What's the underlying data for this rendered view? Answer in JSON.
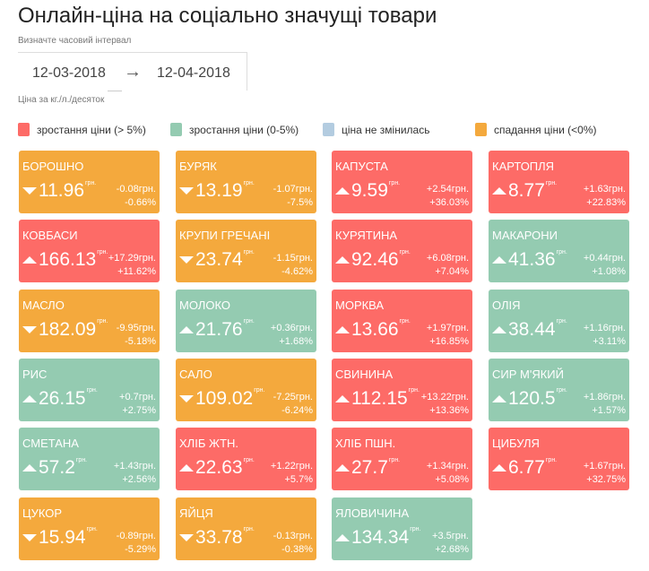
{
  "title": "Онлайн-ціна на соціально значущі товари",
  "interval_label": "Визначте часовий інтервал",
  "date_from": "12-03-2018",
  "arrow": "→",
  "date_to": "12-04-2018",
  "unit_note": "Ціна за кг./л./десяток",
  "legend": [
    {
      "label": "зростання ціни (> 5%)",
      "color": "#fd6b67"
    },
    {
      "label": "зростання ціни (0-5%)",
      "color": "#94cbb1"
    },
    {
      "label": "ціна не змінилась",
      "color": "#b3cce0"
    },
    {
      "label": "спадання ціни (<0%)",
      "color": "#f4a93d"
    }
  ],
  "currency": "грн.",
  "items": [
    {
      "name": "БОРОШНО",
      "price": "11.96",
      "diff": "-0.08грн.",
      "pct": "-0.66%",
      "dir": "down",
      "color": "#f4a93d"
    },
    {
      "name": "БУРЯК",
      "price": "13.19",
      "diff": "-1.07грн.",
      "pct": "-7.5%",
      "dir": "down",
      "color": "#f4a93d"
    },
    {
      "name": "КАПУСТА",
      "price": "9.59",
      "diff": "+2.54грн.",
      "pct": "+36.03%",
      "dir": "up",
      "color": "#fd6b67"
    },
    {
      "name": "КАРТОПЛЯ",
      "price": "8.77",
      "diff": "+1.63грн.",
      "pct": "+22.83%",
      "dir": "up",
      "color": "#fd6b67"
    },
    {
      "name": "КОВБАСИ",
      "price": "166.13",
      "diff": "+17.29грн.",
      "pct": "+11.62%",
      "dir": "up",
      "color": "#fd6b67"
    },
    {
      "name": "КРУПИ ГРЕЧАНІ",
      "price": "23.74",
      "diff": "-1.15грн.",
      "pct": "-4.62%",
      "dir": "down",
      "color": "#f4a93d"
    },
    {
      "name": "КУРЯТИНА",
      "price": "92.46",
      "diff": "+6.08грн.",
      "pct": "+7.04%",
      "dir": "up",
      "color": "#fd6b67"
    },
    {
      "name": "МАКАРОНИ",
      "price": "41.36",
      "diff": "+0.44грн.",
      "pct": "+1.08%",
      "dir": "up",
      "color": "#94cbb1"
    },
    {
      "name": "МАСЛО",
      "price": "182.09",
      "diff": "-9.95грн.",
      "pct": "-5.18%",
      "dir": "down",
      "color": "#f4a93d"
    },
    {
      "name": "МОЛОКО",
      "price": "21.76",
      "diff": "+0.36грн.",
      "pct": "+1.68%",
      "dir": "up",
      "color": "#94cbb1"
    },
    {
      "name": "МОРКВА",
      "price": "13.66",
      "diff": "+1.97грн.",
      "pct": "+16.85%",
      "dir": "up",
      "color": "#fd6b67"
    },
    {
      "name": "ОЛІЯ",
      "price": "38.44",
      "diff": "+1.16грн.",
      "pct": "+3.11%",
      "dir": "up",
      "color": "#94cbb1"
    },
    {
      "name": "РИС",
      "price": "26.15",
      "diff": "+0.7грн.",
      "pct": "+2.75%",
      "dir": "up",
      "color": "#94cbb1"
    },
    {
      "name": "САЛО",
      "price": "109.02",
      "diff": "-7.25грн.",
      "pct": "-6.24%",
      "dir": "down",
      "color": "#f4a93d"
    },
    {
      "name": "СВИНИНА",
      "price": "112.15",
      "diff": "+13.22грн.",
      "pct": "+13.36%",
      "dir": "up",
      "color": "#fd6b67"
    },
    {
      "name": "СИР М'ЯКИЙ",
      "price": "120.5",
      "diff": "+1.86грн.",
      "pct": "+1.57%",
      "dir": "up",
      "color": "#94cbb1"
    },
    {
      "name": "СМЕТАНА",
      "price": "57.2",
      "diff": "+1.43грн.",
      "pct": "+2.56%",
      "dir": "up",
      "color": "#94cbb1"
    },
    {
      "name": "ХЛІБ ЖТН.",
      "price": "22.63",
      "diff": "+1.22грн.",
      "pct": "+5.7%",
      "dir": "up",
      "color": "#fd6b67"
    },
    {
      "name": "ХЛІБ ПШН.",
      "price": "27.7",
      "diff": "+1.34грн.",
      "pct": "+5.08%",
      "dir": "up",
      "color": "#fd6b67"
    },
    {
      "name": "ЦИБУЛЯ",
      "price": "6.77",
      "diff": "+1.67грн.",
      "pct": "+32.75%",
      "dir": "up",
      "color": "#fd6b67"
    },
    {
      "name": "ЦУКОР",
      "price": "15.94",
      "diff": "-0.89грн.",
      "pct": "-5.29%",
      "dir": "down",
      "color": "#f4a93d"
    },
    {
      "name": "ЯЙЦЯ",
      "price": "33.78",
      "diff": "-0.13грн.",
      "pct": "-0.38%",
      "dir": "down",
      "color": "#f4a93d"
    },
    {
      "name": "ЯЛОВИЧИНА",
      "price": "134.34",
      "diff": "+3.5грн.",
      "pct": "+2.68%",
      "dir": "up",
      "color": "#94cbb1"
    }
  ]
}
